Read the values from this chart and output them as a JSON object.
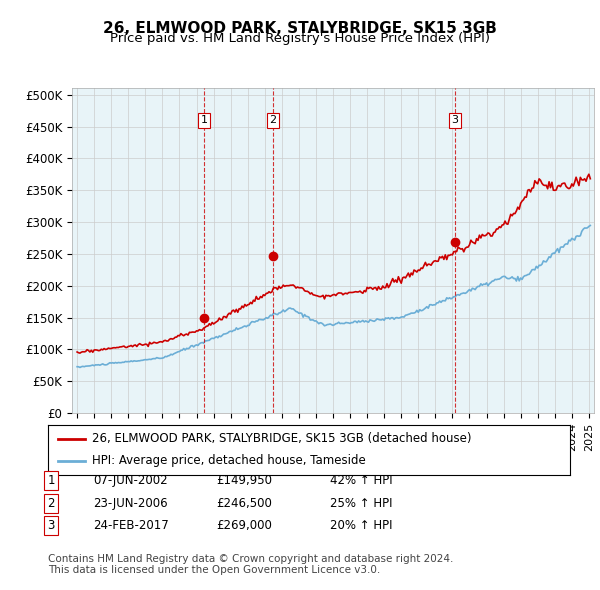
{
  "title": "26, ELMWOOD PARK, STALYBRIDGE, SK15 3GB",
  "subtitle": "Price paid vs. HM Land Registry's House Price Index (HPI)",
  "x_start_year": 1995,
  "x_end_year": 2025,
  "y_min": 0,
  "y_max": 500000,
  "y_ticks": [
    0,
    50000,
    100000,
    150000,
    200000,
    250000,
    300000,
    350000,
    400000,
    450000,
    500000
  ],
  "y_tick_labels": [
    "£0",
    "£50K",
    "£100K",
    "£150K",
    "£200K",
    "£250K",
    "£300K",
    "£350K",
    "£400K",
    "£450K",
    "£500K"
  ],
  "hpi_color": "#6baed6",
  "price_color": "#cc0000",
  "sale_marker_color": "#cc0000",
  "vline_color": "#cc0000",
  "grid_color": "#cccccc",
  "background_color": "#ffffff",
  "plot_bg_color": "#e8f4f8",
  "legend_label_price": "26, ELMWOOD PARK, STALYBRIDGE, SK15 3GB (detached house)",
  "legend_label_hpi": "HPI: Average price, detached house, Tameside",
  "sales": [
    {
      "num": 1,
      "date_dec": 2002.44,
      "price": 149950,
      "label": "07-JUN-2002",
      "price_str": "£149,950",
      "pct": "42% ↑ HPI",
      "vline_x": 2002.44
    },
    {
      "num": 2,
      "date_dec": 2006.48,
      "price": 246500,
      "label": "23-JUN-2006",
      "price_str": "£246,500",
      "pct": "25% ↑ HPI",
      "vline_x": 2006.48
    },
    {
      "num": 3,
      "date_dec": 2017.15,
      "price": 269000,
      "label": "24-FEB-2017",
      "price_str": "£269,000",
      "pct": "20% ↑ HPI",
      "vline_x": 2017.15
    }
  ],
  "footer": "Contains HM Land Registry data © Crown copyright and database right 2024.\nThis data is licensed under the Open Government Licence v3.0.",
  "title_fontsize": 11,
  "subtitle_fontsize": 9.5,
  "axis_fontsize": 8.5,
  "legend_fontsize": 8.5,
  "table_fontsize": 8.5,
  "footer_fontsize": 7.5
}
